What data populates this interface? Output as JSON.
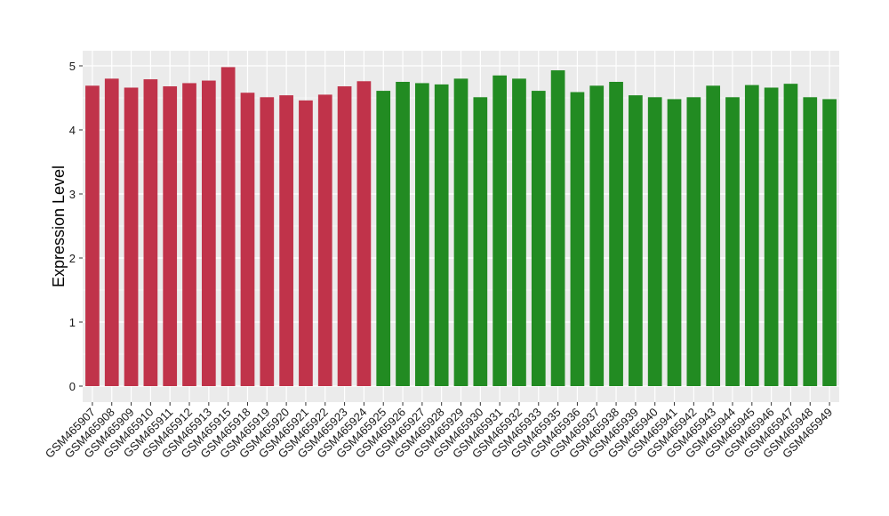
{
  "chart_data": {
    "type": "bar",
    "title": "",
    "xlabel": "",
    "ylabel": "Expression Level",
    "ylim": [
      0,
      5.2
    ],
    "yticks": [
      0,
      1,
      2,
      3,
      4,
      5
    ],
    "grid": true,
    "legend": "none",
    "categories": [
      "GSM465907",
      "GSM465908",
      "GSM465909",
      "GSM465910",
      "GSM465911",
      "GSM465912",
      "GSM465913",
      "GSM465915",
      "GSM465918",
      "GSM465919",
      "GSM465920",
      "GSM465921",
      "GSM465922",
      "GSM465923",
      "GSM465924",
      "GSM465925",
      "GSM465926",
      "GSM465927",
      "GSM465928",
      "GSM465929",
      "GSM465930",
      "GSM465931",
      "GSM465932",
      "GSM465933",
      "GSM465935",
      "GSM465936",
      "GSM465937",
      "GSM465938",
      "GSM465939",
      "GSM465940",
      "GSM465941",
      "GSM465942",
      "GSM465943",
      "GSM465944",
      "GSM465945",
      "GSM465946",
      "GSM465947",
      "GSM465948",
      "GSM465949"
    ],
    "values": [
      4.69,
      4.8,
      4.66,
      4.79,
      4.68,
      4.73,
      4.77,
      4.98,
      4.58,
      4.51,
      4.54,
      4.46,
      4.55,
      4.68,
      4.76,
      4.61,
      4.75,
      4.73,
      4.71,
      4.8,
      4.51,
      4.85,
      4.8,
      4.61,
      4.93,
      4.59,
      4.69,
      4.75,
      4.54,
      4.51,
      4.48,
      4.51,
      4.69,
      4.51,
      4.7,
      4.66,
      4.72,
      4.51,
      4.48
    ],
    "group_colors": [
      "#c0334a",
      "#c0334a",
      "#c0334a",
      "#c0334a",
      "#c0334a",
      "#c0334a",
      "#c0334a",
      "#c0334a",
      "#c0334a",
      "#c0334a",
      "#c0334a",
      "#c0334a",
      "#c0334a",
      "#c0334a",
      "#c0334a",
      "#228b22",
      "#228b22",
      "#228b22",
      "#228b22",
      "#228b22",
      "#228b22",
      "#228b22",
      "#228b22",
      "#228b22",
      "#228b22",
      "#228b22",
      "#228b22",
      "#228b22",
      "#228b22",
      "#228b22",
      "#228b22",
      "#228b22",
      "#228b22",
      "#228b22",
      "#228b22",
      "#228b22",
      "#228b22",
      "#228b22",
      "#228b22"
    ],
    "panel_background": "#ebebeb",
    "grid_color": "#ffffff"
  }
}
